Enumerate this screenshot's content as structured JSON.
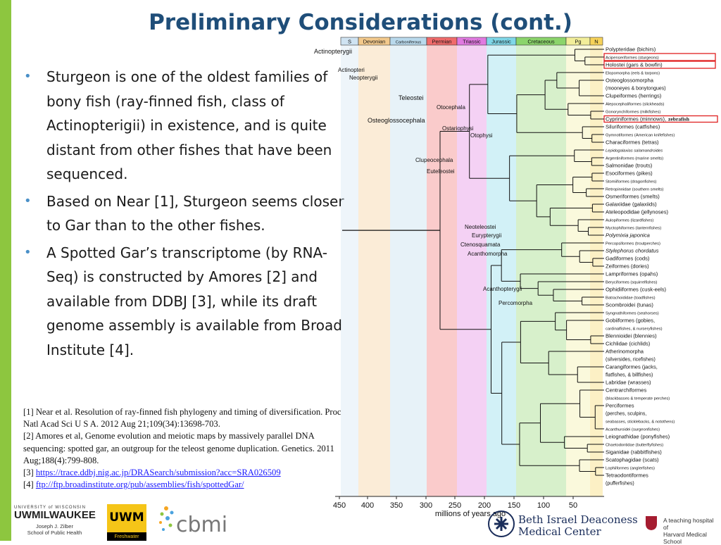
{
  "title": "Preliminary Considerations (cont.)",
  "bullets": [
    "Sturgeon is one of the oldest families of bony fish (ray-finned fish, class of Actinopterigii) in existence, and is quite distant from other fishes that have been sequenced.",
    "Based on Near [1], Sturgeon seems closer to Gar than to the other fishes.",
    "A Spotted Gar’s transcriptome (by RNA-Seq) is constructed by Amores [2] and available from DDBJ [3], while its draft genome assembly is available from Broad Institute [4]."
  ],
  "references": {
    "r1": "[1] Near et al. Resolution of ray-finned fish phylogeny and timing of diversification. Proc Natl Acad Sci U S A. 2012 Aug 21;109(34):13698-703.",
    "r2": "[2] Amores et al, Genome evolution and meiotic maps by massively parallel DNA sequencing: spotted gar, an outgroup for the teleost genome duplication. Genetics. 2011 Aug;188(4):799-808.",
    "r3_prefix": "[3] ",
    "r3_link": "https://trace.ddbj.nig.ac.jp/DRASearch/submission?acc=SRA026509",
    "r4_prefix": "[4] ",
    "r4_link": "ftp://ftp.broadinstitute.org/pub/assemblies/fish/spottedGar/"
  },
  "figure": {
    "periods": [
      {
        "name": "S",
        "color": "#cfe3f2"
      },
      {
        "name": "Devonian",
        "color": "#f3c98c"
      },
      {
        "name": "Carboniferous",
        "color": "#b9d9ec"
      },
      {
        "name": "Permian",
        "color": "#f06b6b"
      },
      {
        "name": "Triassic",
        "color": "#e07ae0"
      },
      {
        "name": "Jurassic",
        "color": "#7fd7e8"
      },
      {
        "name": "Cretaceous",
        "color": "#8bd46b"
      },
      {
        "name": "Pg",
        "color": "#f2ee9a"
      },
      {
        "name": "N",
        "color": "#f7d35a"
      }
    ],
    "axis_ticks": [
      "450",
      "400",
      "350",
      "300",
      "250",
      "200",
      "150",
      "100",
      "50"
    ],
    "axis_label": "millions of years ago",
    "node_labels": [
      "Actinopterygii",
      "Actinopteri",
      "Neopterygii",
      "Teleostei",
      "Osteoglossocephala",
      "Otocephala",
      "Ostariophysi",
      "Otophysi",
      "Clupeocephala",
      "Euteleostei",
      "Neoteleostei",
      "Eurypterygii",
      "Ctenosquamata",
      "Acanthomorpha",
      "Acanthopterygii",
      "Percomorpha"
    ],
    "clades": [
      "Polypteridae (bichirs)",
      "Acipenseriformes (sturgeons)",
      "Holostei (gars & bowfin)",
      "Elopomorpha (eels & tarpons)",
      "Osteoglossomorpha",
      "(mooneyes & bonytongues)",
      "Clupeiformes (herrings)",
      "Alepocephaliformes (slickheads)",
      "Gonorynchiformes (milkfishes)",
      "Cypriniformes (minnows),",
      "Siluriformes (catfishes)",
      "Gymnotiformes (American knifefishes)",
      "Characiformes (tetras)",
      "Lepidogalaxias salamandroides",
      "Argentiniformes (marine smelts)",
      "Salmonidae (trouts)",
      "Esociformes (pikes)",
      "Stomiiformes (dragonfishes)",
      "Retropinnidae (southern smelts)",
      "Osmeriformes (smelts)",
      "Galaxiidae (galaxiids)",
      "Ateleopodidae (jellynoses)",
      "Aulopiformes (lizardfishes)",
      "Myctophiformes (lanternfishes)",
      "Polymixia japonica",
      "Percopsiformes (troutperches)",
      "Stylephorus chordatus",
      "Gadiformes (cods)",
      "Zeiformes (dories)",
      "Lampriformes (opahs)",
      "Beryciformes (squirrelfishes)",
      "Ophidiiformes (cusk-eels)",
      "Batrachoididae (toadfishes)",
      "Scombroidei (tunas)",
      "Syngnathiformes (seahorses)",
      "Gobiiformes (gobies,",
      "cardinalfishes, & nurseryfishes)",
      "Blennioidei (blennies)",
      "Cichlidae (cichlids)",
      "Atherinomorpha",
      "(silversides, ricefishes)",
      "Carangiformes (jacks,",
      "flatfishes, & billfishes)",
      "Labridae (wrasses)",
      "Centrarchiformes",
      "(blackbasses & temperate perches)",
      "Perciformes",
      "(perches, sculpins,",
      "seabasses, sticklebacks, & notothens)",
      "Acanthuroidei (surgeonfishes)",
      "Leiognathidae (ponyfishes)",
      "Chaetodontidae (butterflyfishes)",
      "Siganidae (rabbitfishes)",
      "Scatophagidae (scats)",
      "Lophiiformes (anglerfishes)",
      "Tetraodontiformes",
      "(pufferfishes)"
    ],
    "highlight_word": "zebrafish",
    "accent_color": "#e02020"
  },
  "logos": {
    "uwm_line1": "UNIVERSITY of WISCONSIN",
    "uwm_line2": "UWMILWAUKEE",
    "uwm_line3": "Joseph J. Zilber",
    "uwm_line4": "School of Public Health",
    "freshwater_top": "UWM",
    "freshwater_bottom": "Freshwater",
    "cbmi": "cbmi",
    "bidmc_line1": "Beth Israel Deaconess",
    "bidmc_line2": "Medical Center",
    "harvard_line1": "A teaching hospital of",
    "harvard_line2": "Harvard Medical School"
  }
}
